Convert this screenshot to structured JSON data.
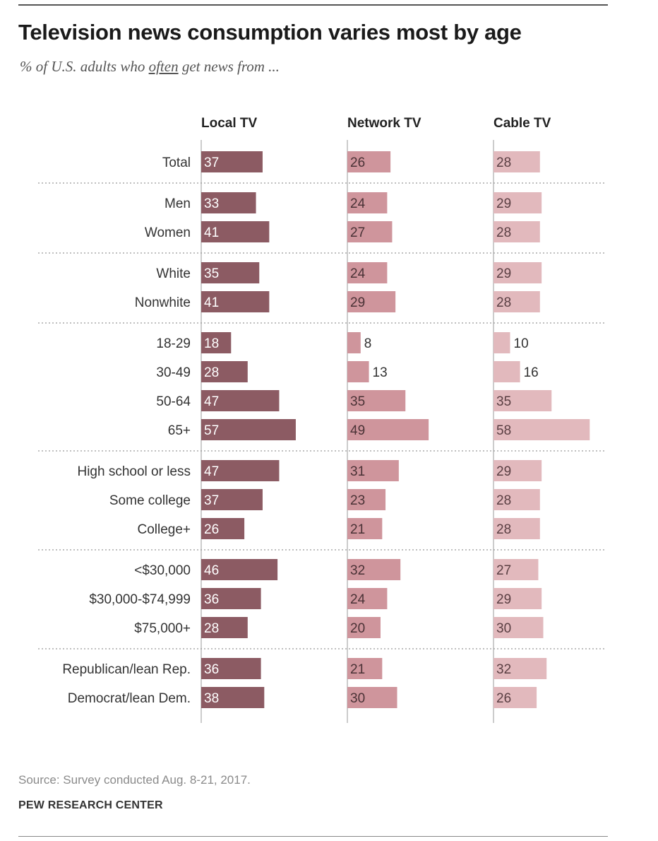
{
  "title": "Television news consumption varies most by age",
  "subtitle": {
    "prefix": "% of U.S. adults who ",
    "emphasis": "often",
    "suffix": " get news from ..."
  },
  "colors": {
    "local_tv": "#8c5b63",
    "network_tv": "#cf959c",
    "cable_tv": "#e2b9bd",
    "axis": "#bbbbbb",
    "divider": "#999999"
  },
  "chart_data": {
    "type": "bar",
    "orientation": "horizontal",
    "panels": [
      "Local TV",
      "Network TV",
      "Cable TV"
    ],
    "groups": [
      [
        "Total"
      ],
      [
        "Men",
        "Women"
      ],
      [
        "White",
        "Nonwhite"
      ],
      [
        "18-29",
        "30-49",
        "50-64",
        "65+"
      ],
      [
        "High school or less",
        "Some college",
        "College+"
      ],
      [
        "<$30,000",
        "$30,000-$74,999",
        "$75,000+"
      ],
      [
        "Republican/lean Rep.",
        "Democrat/lean Dem."
      ]
    ],
    "categories": [
      "Total",
      "Men",
      "Women",
      "White",
      "Nonwhite",
      "18-29",
      "30-49",
      "50-64",
      "65+",
      "High school or less",
      "Some college",
      "College+",
      "<$30,000",
      "$30,000-$74,999",
      "$75,000+",
      "Republican/lean Rep.",
      "Democrat/lean Dem."
    ],
    "series": [
      {
        "name": "Local TV",
        "values": [
          37,
          33,
          41,
          35,
          41,
          18,
          28,
          47,
          57,
          47,
          37,
          26,
          46,
          36,
          28,
          36,
          38
        ]
      },
      {
        "name": "Network TV",
        "values": [
          26,
          24,
          27,
          24,
          29,
          8,
          13,
          35,
          49,
          31,
          23,
          21,
          32,
          24,
          20,
          21,
          30
        ]
      },
      {
        "name": "Cable TV",
        "values": [
          28,
          29,
          28,
          29,
          28,
          10,
          16,
          35,
          58,
          29,
          28,
          28,
          27,
          29,
          30,
          32,
          26
        ]
      }
    ],
    "xlim": [
      0,
      60
    ],
    "units": "%"
  },
  "source": "Source: Survey conducted Aug. 8-21, 2017.",
  "organization": "PEW RESEARCH CENTER"
}
